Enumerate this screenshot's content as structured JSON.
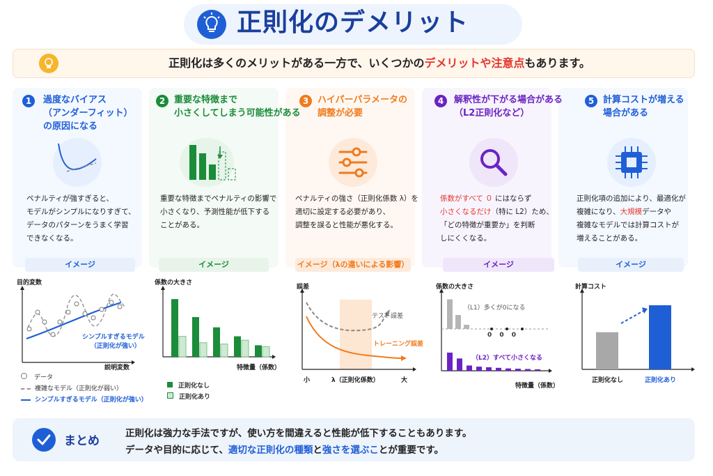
{
  "title": "正則化のデメリット",
  "intro": {
    "part1": "正則化は多くのメリットがある一方で、いくつかの",
    "highlight": "デメリットや注意点",
    "part2": "もあります。"
  },
  "columns": [
    {
      "num": "1",
      "heading": [
        "過度なバイアス",
        "（アンダーフィット）",
        "の原因になる"
      ],
      "desc": [
        "ペナルティが強すぎると、",
        "モデルがシンプルになりすぎて、",
        "データのパターンをうまく学習",
        "できなくなる。"
      ],
      "pill": "イメージ",
      "chart": {
        "ylabel": "目的変数",
        "xlabel": "説明変数",
        "annotation": [
          "シンプルすぎるモデル",
          "（正則化が強い）"
        ],
        "legend": [
          "データ",
          "複雑なモデル（正則化が弱い）",
          "シンプルすぎるモデル（正則化が強い）"
        ]
      }
    },
    {
      "num": "2",
      "heading": [
        "重要な特徴まで",
        "小さくしてしまう可能性がある"
      ],
      "desc": [
        "重要な特徴までペナルティの影響で",
        "小さくなり、予測性能が低下する",
        "ことがある。"
      ],
      "pill": "イメージ",
      "chart": {
        "ylabel": "係数の大きさ",
        "xlabel": "特徴量（係数）",
        "legend": [
          "正則化なし",
          "正則化あり"
        ],
        "no_reg": [
          0.9,
          0.62,
          0.46,
          0.32,
          0.18
        ],
        "with_reg": [
          0.32,
          0.22,
          0.2,
          0.26,
          0.16
        ]
      }
    },
    {
      "num": "3",
      "heading": [
        "ハイパーパラメータの",
        "調整が必要"
      ],
      "desc": [
        "ペナルティの強さ（正則化係数 λ）を",
        "適切に設定する必要があり、",
        "調整を誤ると性能が悪化する。"
      ],
      "pill": "イメージ（λの違いによる影響）",
      "chart": {
        "ylabel": "誤差",
        "test_label": "テスト誤差",
        "train_label": "トレーニング誤差",
        "x_small": "小",
        "x_mid": "λ（正則化係数）",
        "x_large": "大"
      }
    },
    {
      "num": "4",
      "heading": [
        "解釈性が下がる場合がある",
        "（L2正則化など）"
      ],
      "desc_red1": "係数がすべて ０",
      "desc_1b": " にはならず",
      "desc_red2": "小さくなるだけ",
      "desc_2b": "（特に L2）ため、",
      "desc_3": "「どの特徴が重要か」を判断",
      "desc_4": "しにくくなる。",
      "pill": "イメージ",
      "chart": {
        "ylabel": "係数の大きさ",
        "xlabel": "特徴量（係数）",
        "l1_label": "（L1）多くが0になる",
        "l2_label": "（L2）すべて小さくなる",
        "zeros": "0   0   0",
        "l1_values": [
          0.85,
          0.4,
          0.12,
          0,
          0,
          0,
          0
        ],
        "l2_values": [
          0.62,
          0.42,
          0.18,
          0.14,
          0.12,
          0.1,
          0.08,
          0.07,
          0.06,
          0.05
        ]
      }
    },
    {
      "num": "5",
      "heading": [
        "計算コストが増える",
        "場合がある"
      ],
      "desc_1": "正則化項の追加により、最適化が",
      "desc_2a": "複雑になり、",
      "desc_2red": "大規模",
      "desc_2b": "データや",
      "desc_3": "複雑なモデルでは計算コストが",
      "desc_4": "増えることがある。",
      "pill": "イメージ",
      "chart": {
        "ylabel": "計算コスト",
        "categories": [
          "正則化なし",
          "正則化あり"
        ],
        "values": [
          0.58,
          1.0
        ]
      }
    }
  ],
  "summary": {
    "label": "まとめ",
    "line1": "正則化は強力な手法ですが、使い方を間違えると性能が低下することもあります。",
    "line2a": "データや目的に応じて、",
    "line2b": "適切な正則化の種類",
    "line2c": "と",
    "line2d": "強さを選ぶこ",
    "line2e": "とが重要です。"
  },
  "colors": {
    "c1": "#1f5fd6",
    "c2": "#1a8c3a",
    "c3": "#f07b1d",
    "c4": "#6a24c2",
    "c5": "#1f5fd6"
  }
}
